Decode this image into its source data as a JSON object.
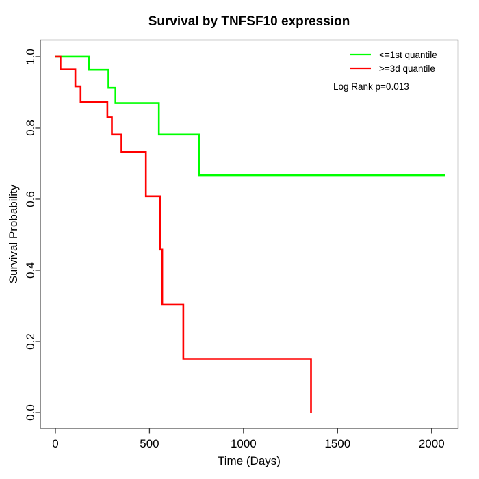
{
  "chart_data": {
    "type": "line",
    "chart_style": "kaplan-meier-step",
    "title": "Survival by TNFSF10 expression",
    "xlabel": "Time (Days)",
    "ylabel": "Survival Probability",
    "xlim": [
      -80,
      2141
    ],
    "ylim": [
      -0.0442,
      1.047
    ],
    "grid": false,
    "legend_position": "top-right",
    "annotation": "Log Rank p=0.013",
    "x_ticks": [
      {
        "value": 0,
        "label": "0"
      },
      {
        "value": 500,
        "label": "500"
      },
      {
        "value": 1000,
        "label": "1000"
      },
      {
        "value": 1500,
        "label": "1500"
      },
      {
        "value": 2000,
        "label": "2000"
      }
    ],
    "y_ticks": [
      {
        "value": 0.0,
        "label": "0.0"
      },
      {
        "value": 0.2,
        "label": "0.2"
      },
      {
        "value": 0.4,
        "label": "0.4"
      },
      {
        "value": 0.6,
        "label": "0.6"
      },
      {
        "value": 0.8,
        "label": "0.8"
      },
      {
        "value": 1.0,
        "label": "1.0"
      }
    ],
    "series": [
      {
        "name": "<=1st quantile",
        "color": "#00FF00",
        "steps": [
          [
            0,
            1.0
          ],
          [
            179,
            0.963
          ],
          [
            282,
            0.913
          ],
          [
            319,
            0.87
          ],
          [
            550,
            0.781
          ],
          [
            763,
            0.667
          ]
        ],
        "end_time": 2070
      },
      {
        "name": ">=3d quantile",
        "color": "#FF0000",
        "steps": [
          [
            0,
            1.0
          ],
          [
            27,
            0.964
          ],
          [
            106,
            0.917
          ],
          [
            134,
            0.873
          ],
          [
            276,
            0.83
          ],
          [
            300,
            0.781
          ],
          [
            351,
            0.733
          ],
          [
            481,
            0.608
          ],
          [
            556,
            0.458
          ],
          [
            568,
            0.304
          ],
          [
            680,
            0.151
          ],
          [
            1359,
            0.0
          ]
        ],
        "end_time": 1359
      }
    ]
  }
}
